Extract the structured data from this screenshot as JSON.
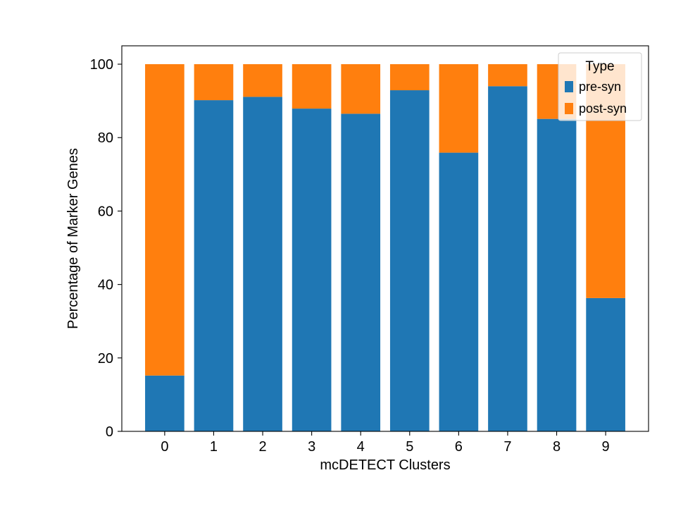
{
  "chart_data": {
    "type": "bar",
    "stacked": true,
    "title": "",
    "xlabel": "mcDETECT Clusters",
    "ylabel": "Percentage of Marker Genes",
    "categories": [
      "0",
      "1",
      "2",
      "3",
      "4",
      "5",
      "6",
      "7",
      "8",
      "9"
    ],
    "series": [
      {
        "name": "pre-syn",
        "color": "#1f77b4",
        "values": [
          15.2,
          90.2,
          91.1,
          87.9,
          86.5,
          92.9,
          75.9,
          94.0,
          85.1,
          36.3
        ]
      },
      {
        "name": "post-syn",
        "color": "#ff7f0e",
        "values": [
          84.8,
          9.8,
          8.9,
          12.1,
          13.5,
          7.1,
          24.1,
          6.0,
          14.9,
          63.7
        ]
      }
    ],
    "yticks": [
      0,
      20,
      40,
      60,
      80,
      100
    ],
    "ylim": [
      0,
      105
    ],
    "grid": false,
    "legend": {
      "title": "Type",
      "placement": "top-right"
    }
  }
}
